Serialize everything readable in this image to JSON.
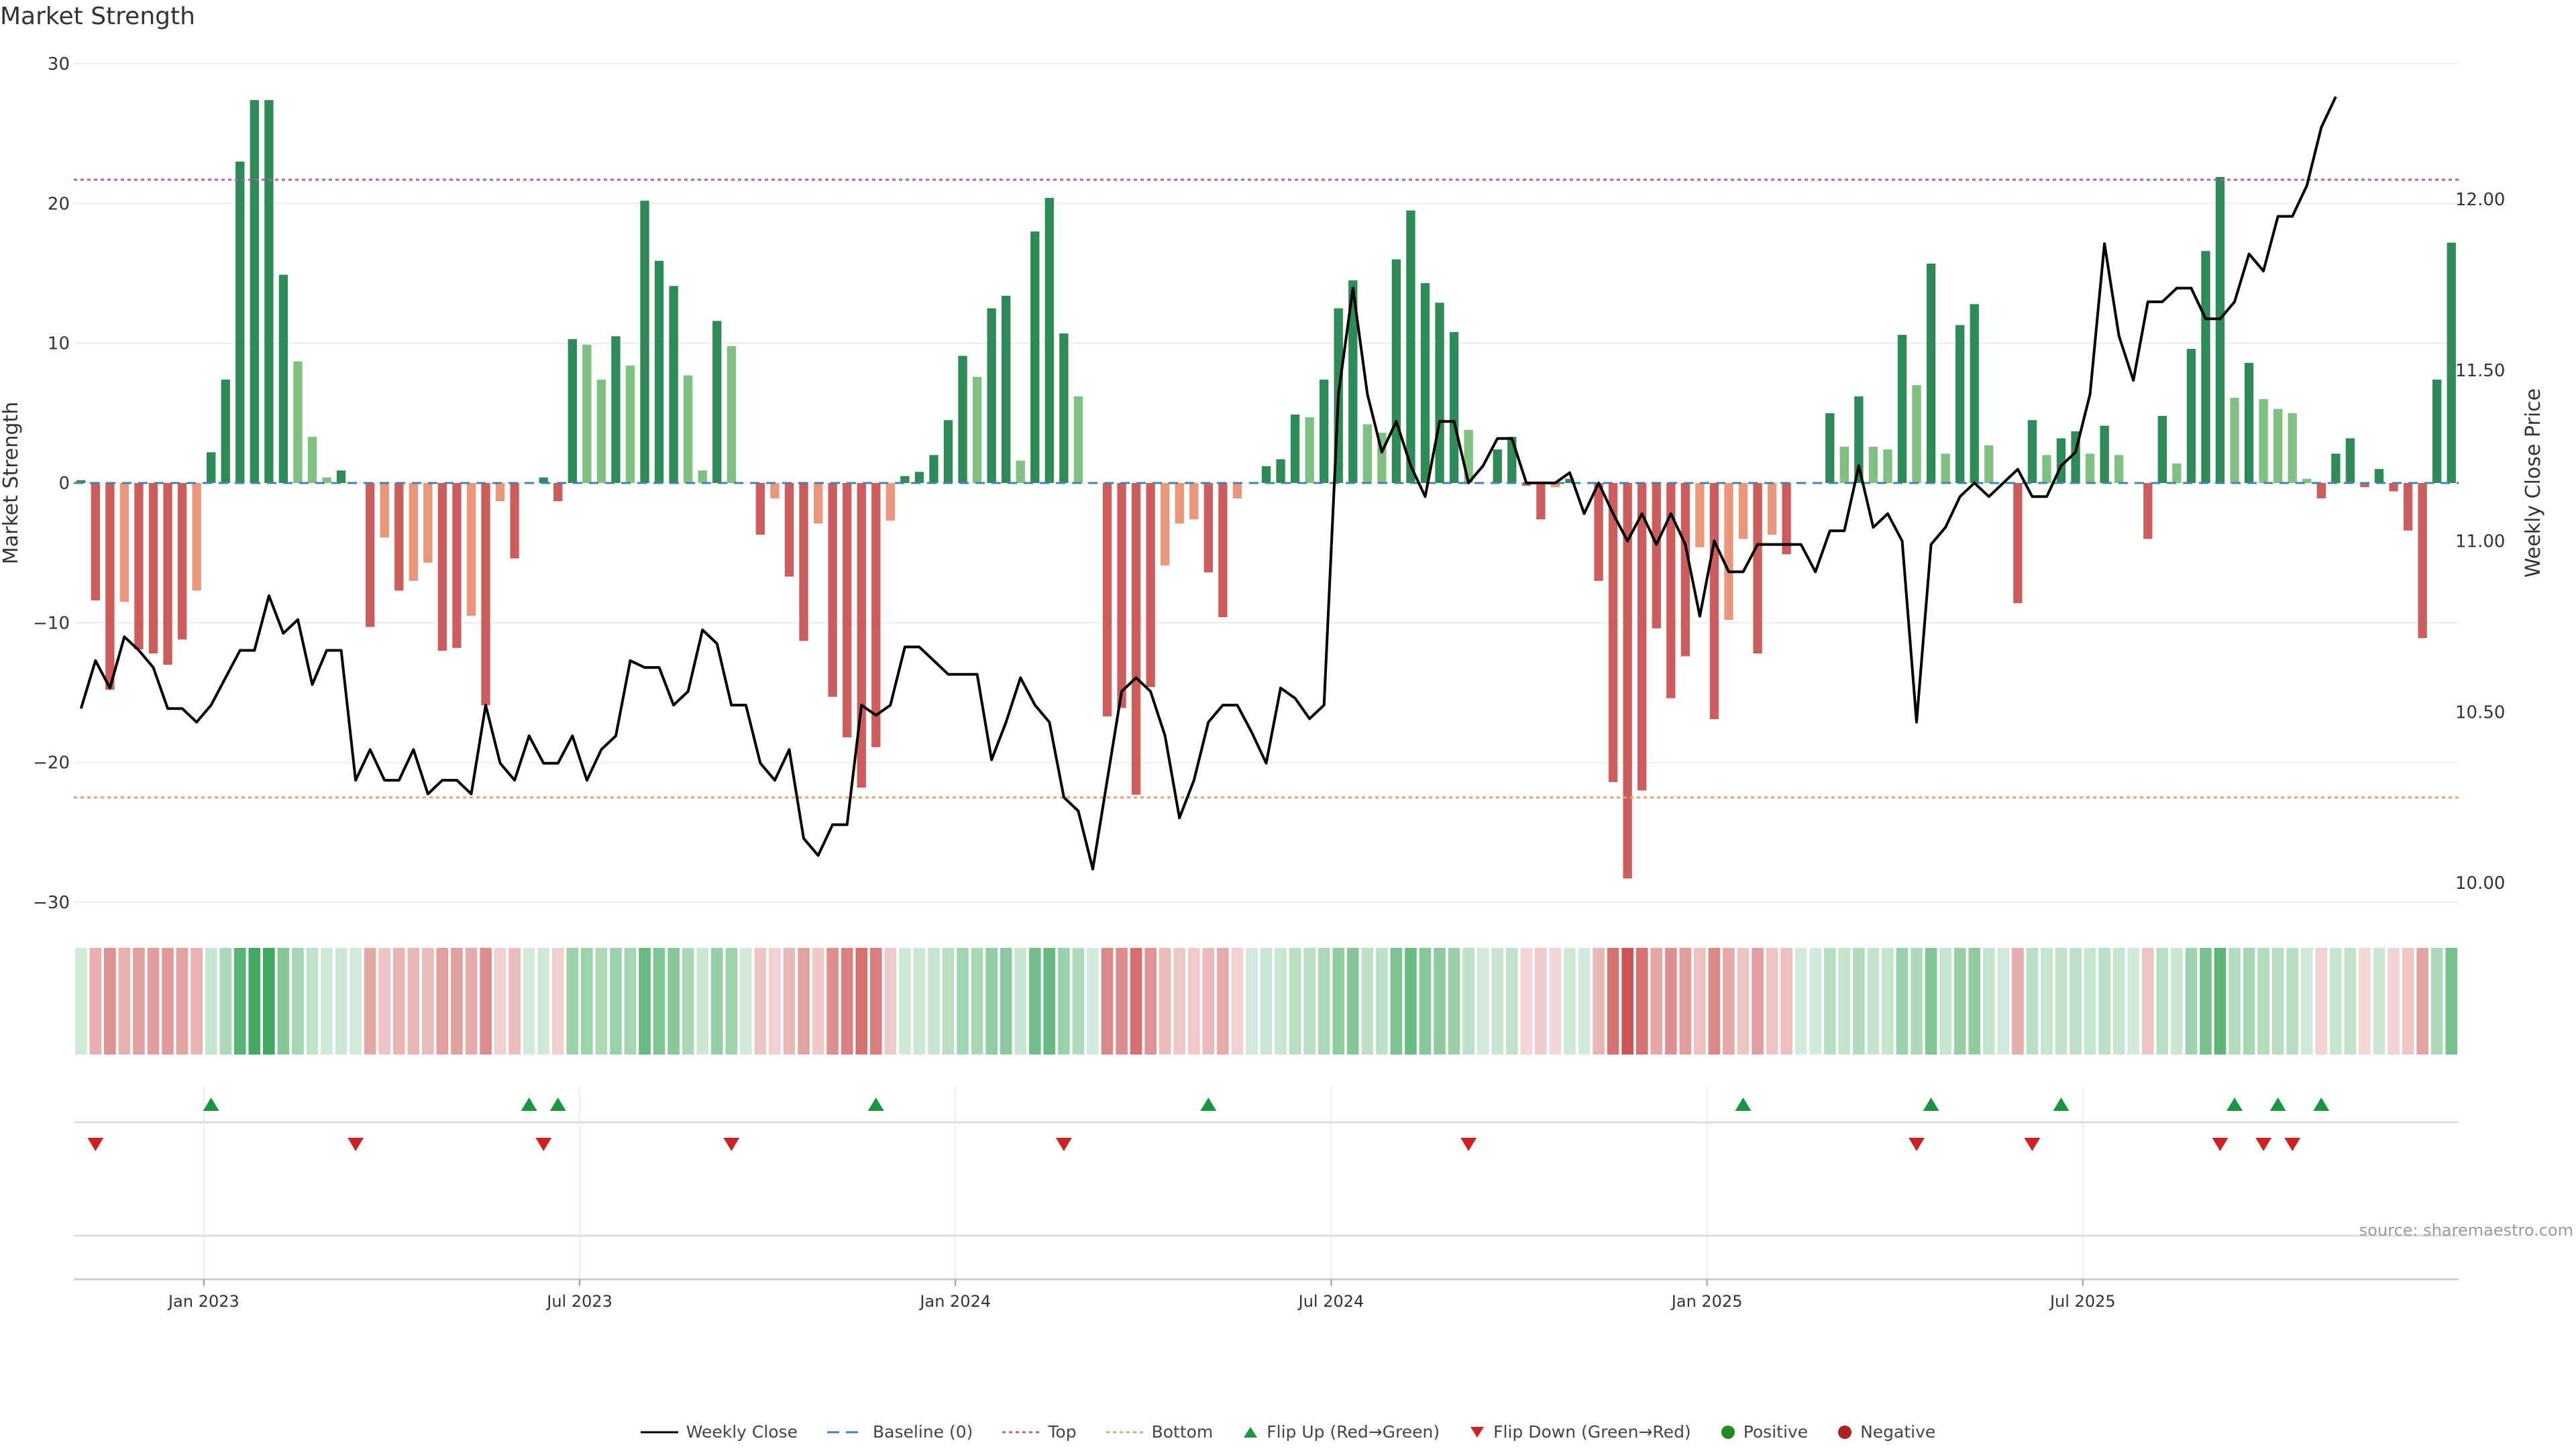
{
  "chart_data": {
    "type": "bar",
    "title": "Market Strength",
    "ylabel": "Market Strength",
    "y2label": "Weekly Close Price",
    "ylim": [
      -30,
      30
    ],
    "y2lim": [
      10.0,
      12.0
    ],
    "yticks": [
      "30",
      "20",
      "10",
      "0",
      "−10",
      "−20",
      "−30"
    ],
    "y2ticks": [
      "12.00",
      "11.50",
      "11.00",
      "10.50",
      "10.00"
    ],
    "x_ticks": [
      "Jan 2023",
      "Jul 2023",
      "Jan 2024",
      "Jul 2024",
      "Jan 2025",
      "Jul 2025"
    ],
    "x_tick_weeks": [
      9,
      35,
      61,
      87,
      113,
      139
    ],
    "top_line": 21.7,
    "bottom_line": -22.5,
    "strength": [
      0.2,
      -8.4,
      -14.8,
      -8.5,
      -11.9,
      -12.2,
      -13.0,
      -11.2,
      -7.7,
      2.2,
      7.4,
      23.0,
      27.4,
      27.4,
      14.9,
      8.7,
      3.3,
      0.4,
      0.9,
      0,
      -10.3,
      -3.9,
      -7.7,
      -7.0,
      -5.7,
      -12.0,
      -11.8,
      -9.5,
      -15.9,
      -1.3,
      -5.4,
      0,
      0.4,
      -1.3,
      10.3,
      9.9,
      7.4,
      10.5,
      8.4,
      20.2,
      15.9,
      14.1,
      7.7,
      0.9,
      11.6,
      9.8,
      0,
      -3.7,
      -1.1,
      -6.7,
      -11.3,
      -2.9,
      -15.3,
      -18.2,
      -21.8,
      -18.9,
      -2.7,
      0.5,
      0.8,
      2.0,
      4.5,
      9.1,
      7.6,
      12.5,
      13.4,
      1.6,
      18.0,
      20.4,
      10.7,
      6.2,
      0,
      -16.7,
      -16.1,
      -22.3,
      -14.6,
      -5.9,
      -2.9,
      -2.6,
      -6.4,
      -9.6,
      -1.1,
      0,
      1.2,
      1.7,
      4.9,
      4.7,
      7.4,
      12.5,
      14.5,
      4.2,
      3.6,
      16.0,
      19.5,
      14.3,
      12.9,
      10.8,
      3.8,
      0,
      2.4,
      3.3,
      -0.2,
      -2.6,
      -0.3,
      0.3,
      0,
      -7.0,
      -21.4,
      -28.3,
      -22.0,
      -10.4,
      -15.4,
      -12.4,
      -4.6,
      -16.9,
      -9.8,
      -4.0,
      -12.2,
      -3.7,
      -5.1,
      0,
      0,
      5.0,
      2.6,
      6.2,
      2.6,
      2.4,
      10.6,
      7.0,
      15.7,
      2.1,
      11.3,
      12.8,
      2.7,
      0,
      -8.6,
      4.5,
      2.0,
      3.2,
      3.7,
      2.1,
      4.1,
      2.0,
      0,
      -4.0,
      4.8,
      1.4,
      9.6,
      16.6,
      21.9,
      6.1,
      8.6,
      6.0,
      5.3,
      5.0,
      0.3,
      -1.1,
      2.1,
      3.2,
      -0.3,
      1.0,
      -0.6,
      -3.4,
      -11.1,
      7.4,
      17.2
    ],
    "weekly_close": [
      10.51,
      10.65,
      10.57,
      10.72,
      10.68,
      10.63,
      10.51,
      10.51,
      10.47,
      10.52,
      10.6,
      10.68,
      10.68,
      10.84,
      10.73,
      10.77,
      10.58,
      10.68,
      10.68,
      10.3,
      10.39,
      10.3,
      10.3,
      10.39,
      10.26,
      10.3,
      10.3,
      10.26,
      10.52,
      10.35,
      10.3,
      10.43,
      10.35,
      10.35,
      10.43,
      10.3,
      10.39,
      10.43,
      10.65,
      10.63,
      10.63,
      10.52,
      10.56,
      10.74,
      10.7,
      10.52,
      10.52,
      10.35,
      10.3,
      10.39,
      10.13,
      10.08,
      10.17,
      10.17,
      10.52,
      10.49,
      10.52,
      10.69,
      10.69,
      10.65,
      10.61,
      10.61,
      10.61,
      10.36,
      10.47,
      10.6,
      10.52,
      10.47,
      10.25,
      10.21,
      10.04,
      10.3,
      10.56,
      10.6,
      10.56,
      10.43,
      10.19,
      10.3,
      10.47,
      10.52,
      10.52,
      10.44,
      10.35,
      10.57,
      10.54,
      10.48,
      10.52,
      11.43,
      11.74,
      11.43,
      11.26,
      11.35,
      11.22,
      11.13,
      11.35,
      11.35,
      11.17,
      11.22,
      11.3,
      11.3,
      11.17,
      11.17,
      11.17,
      11.2,
      11.08,
      11.17,
      11.08,
      11.0,
      11.08,
      10.99,
      11.08,
      10.99,
      10.78,
      11.0,
      10.91,
      10.91,
      10.99,
      10.99,
      10.99,
      10.99,
      10.91,
      11.03,
      11.03,
      11.22,
      11.04,
      11.08,
      11.0,
      10.47,
      10.99,
      11.04,
      11.13,
      11.17,
      11.13,
      11.17,
      11.21,
      11.13,
      11.13,
      11.22,
      11.26,
      11.43,
      11.87,
      11.6,
      11.47,
      11.7,
      11.7,
      11.74,
      11.74,
      11.65,
      11.65,
      11.7,
      11.84,
      11.79,
      11.95,
      11.95,
      12.04,
      12.21,
      12.3
    ]
  },
  "flip_up_weeks": [
    9,
    31,
    33,
    55,
    78,
    115,
    128,
    137,
    149,
    152,
    155
  ],
  "flip_down_weeks": [
    1,
    19,
    32,
    45,
    68,
    96,
    127,
    135,
    148,
    151,
    153
  ],
  "source_text": "source: sharemaestro.com",
  "legend": [
    {
      "label": "Weekly Close",
      "icon": "solid-line-icon"
    },
    {
      "label": "Baseline (0)",
      "icon": "dashed-line-icon"
    },
    {
      "label": "Top",
      "icon": "dotted-line-icon"
    },
    {
      "label": "Bottom",
      "icon": "dotted-line-icon"
    },
    {
      "label": "Flip Up (Red→Green)",
      "icon": "triangle-up-icon"
    },
    {
      "label": "Flip Down (Green→Red)",
      "icon": "triangle-down-icon"
    },
    {
      "label": "Positive",
      "icon": "circle-icon"
    },
    {
      "label": "Negative",
      "icon": "circle-icon"
    }
  ],
  "colors": {
    "pos_strong": "#2e8b57",
    "pos_weak": "#80c080",
    "neg_strong": "#cd5c5c",
    "neg_weak": "#e9967a",
    "price_line": "#000000",
    "baseline": "#4682b4",
    "top": "#b05fb0",
    "bottom": "#e9a070",
    "flip_up": "#1a9641",
    "flip_down": "#cc2222",
    "positive_dot": "#228b22",
    "negative_dot": "#aa2222"
  }
}
